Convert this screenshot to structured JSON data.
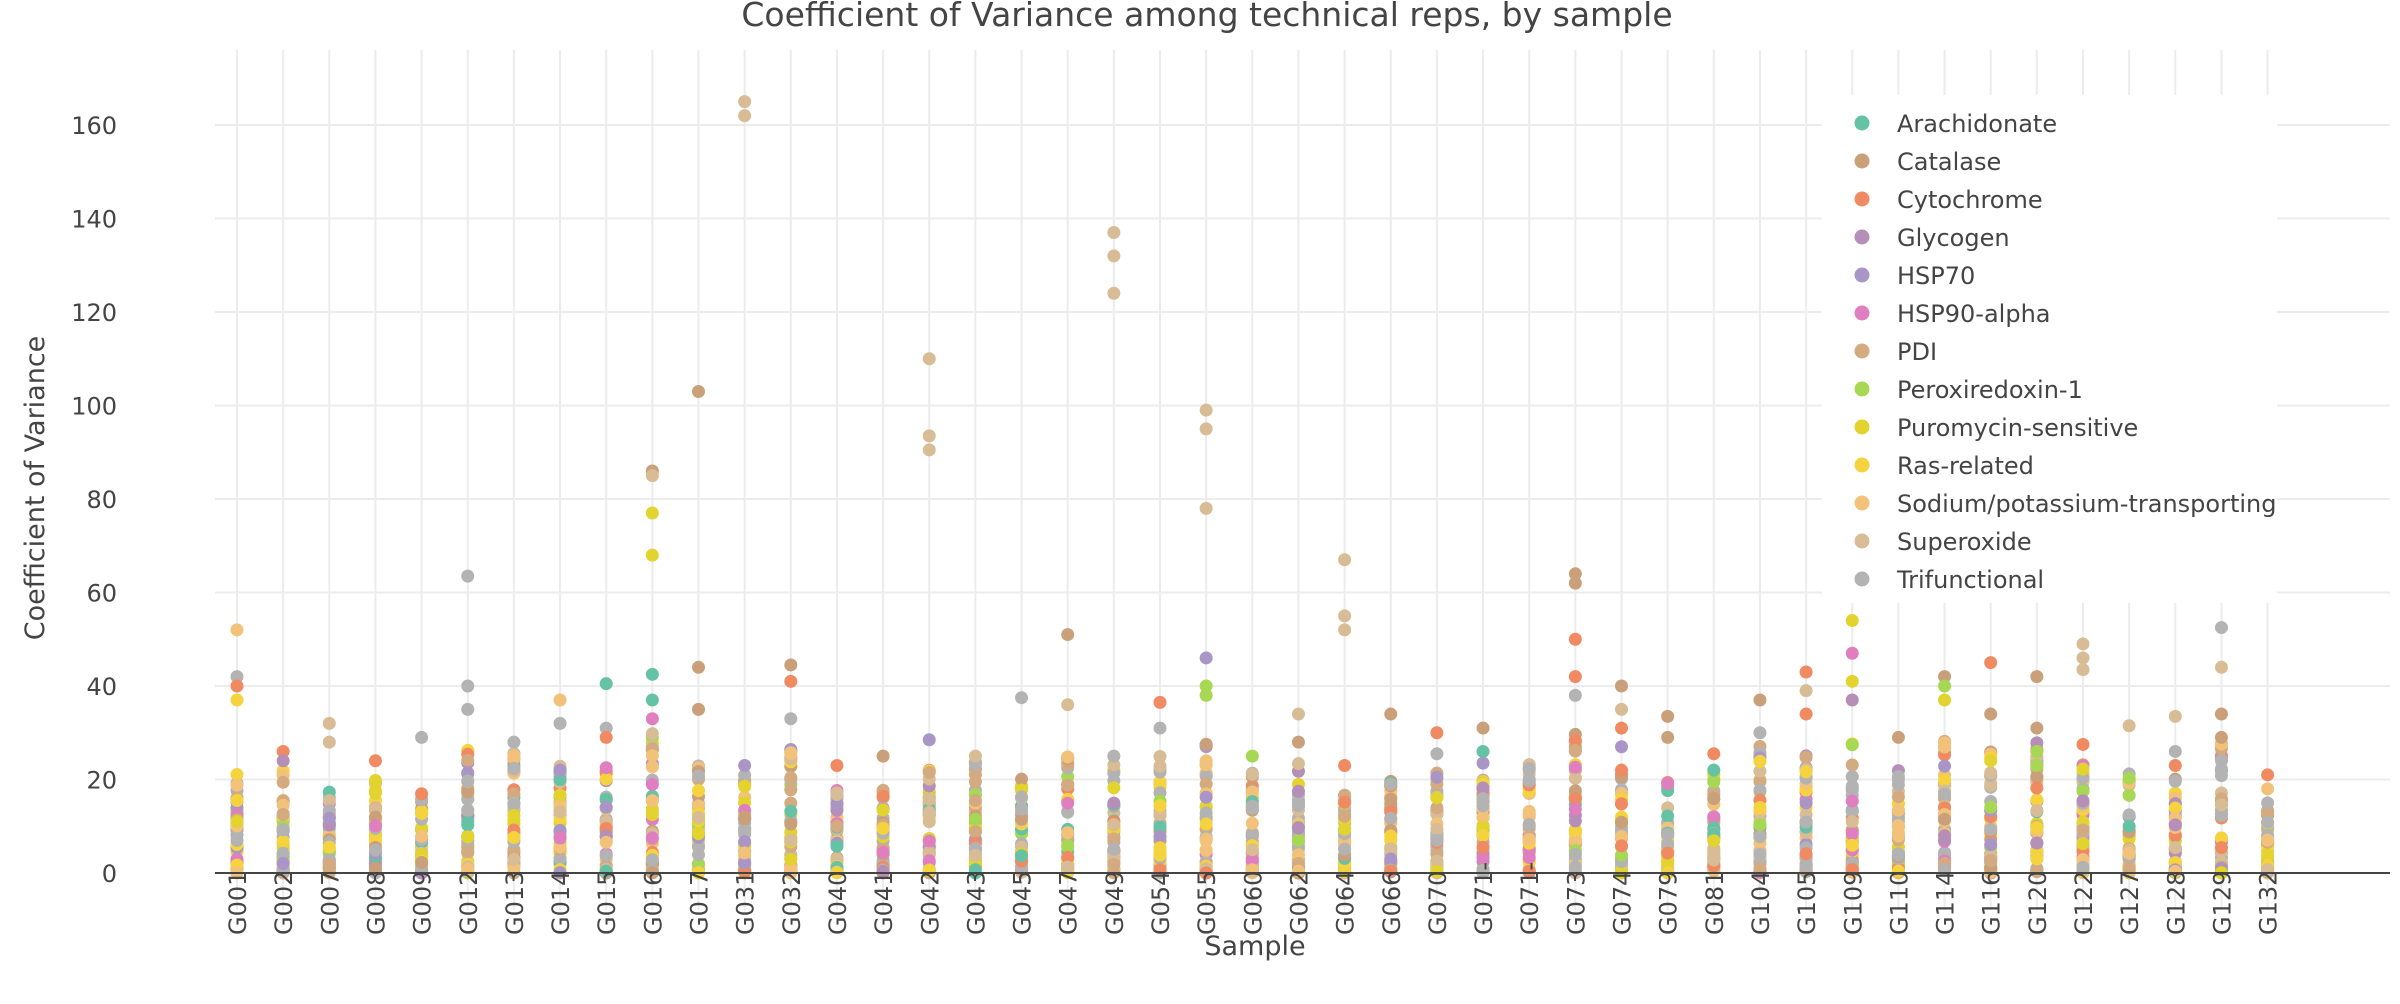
{
  "chart_data": {
    "type": "scatter",
    "title": "Coefficient of Variance among technical reps, by sample",
    "xlabel": "Sample",
    "ylabel": "Coefficient of Variance",
    "ylim": [
      -15,
      175
    ],
    "yticks": [
      0,
      20,
      40,
      60,
      80,
      100,
      120,
      140,
      160
    ],
    "grid": true,
    "legend_position": "top-right",
    "categories": [
      "G001",
      "G002",
      "G007",
      "G008",
      "G009",
      "G012",
      "G013",
      "G014",
      "G015",
      "G016",
      "G017",
      "G031",
      "G032",
      "G040",
      "G041",
      "G042",
      "G043",
      "G045",
      "G047",
      "G049",
      "G054",
      "G055",
      "G060",
      "G062",
      "G064",
      "G066",
      "G070",
      "G071-",
      "G071-",
      "G073",
      "G074",
      "G079",
      "G081",
      "G104",
      "G105",
      "G109",
      "G110",
      "G114",
      "G116",
      "G120",
      "G122",
      "G127",
      "G128",
      "G129",
      "G132"
    ],
    "series": [
      {
        "name": "Arachidonate",
        "color": "#66c2a5"
      },
      {
        "name": "Catalase",
        "color": "#c9a07a"
      },
      {
        "name": "Cytochrome",
        "color": "#ef8a62"
      },
      {
        "name": "Glycogen",
        "color": "#b58fb8"
      },
      {
        "name": "HSP70",
        "color": "#a996c6"
      },
      {
        "name": "HSP90-alpha",
        "color": "#e07fc0"
      },
      {
        "name": "PDI",
        "color": "#d4aa80"
      },
      {
        "name": "Peroxiredoxin-1",
        "color": "#a6d854"
      },
      {
        "name": "Puromycin-sensitive",
        "color": "#e2d32e"
      },
      {
        "name": "Ras-related",
        "color": "#f5d33e"
      },
      {
        "name": "Sodium/potassium-transporting",
        "color": "#f2c27a"
      },
      {
        "name": "Superoxide",
        "color": "#d8bc95"
      },
      {
        "name": "Trifunctional",
        "color": "#b3b3b3"
      }
    ],
    "outliers": [
      {
        "x": "G001",
        "y": 52,
        "series": "Sodium/potassium-transporting"
      },
      {
        "x": "G001",
        "y": 42,
        "series": "Trifunctional"
      },
      {
        "x": "G001",
        "y": 40,
        "series": "Cytochrome"
      },
      {
        "x": "G001",
        "y": 37,
        "series": "Ras-related"
      },
      {
        "x": "G002",
        "y": 26,
        "series": "Cytochrome"
      },
      {
        "x": "G002",
        "y": 24,
        "series": "Glycogen"
      },
      {
        "x": "G007",
        "y": 32,
        "series": "Superoxide"
      },
      {
        "x": "G007",
        "y": 28,
        "series": "Superoxide"
      },
      {
        "x": "G008",
        "y": 24,
        "series": "Cytochrome"
      },
      {
        "x": "G009",
        "y": 29,
        "series": "Trifunctional"
      },
      {
        "x": "G012",
        "y": 63.5,
        "series": "Trifunctional"
      },
      {
        "x": "G012",
        "y": 40,
        "series": "Trifunctional"
      },
      {
        "x": "G012",
        "y": 35,
        "series": "Trifunctional"
      },
      {
        "x": "G013",
        "y": 28,
        "series": "Trifunctional"
      },
      {
        "x": "G014",
        "y": 37,
        "series": "Sodium/potassium-transporting"
      },
      {
        "x": "G014",
        "y": 32,
        "series": "Trifunctional"
      },
      {
        "x": "G014",
        "y": 22,
        "series": "HSP70"
      },
      {
        "x": "G015",
        "y": 40.5,
        "series": "Arachidonate"
      },
      {
        "x": "G015",
        "y": 31,
        "series": "Trifunctional"
      },
      {
        "x": "G015",
        "y": 29,
        "series": "Cytochrome"
      },
      {
        "x": "G016",
        "y": 86,
        "series": "Catalase"
      },
      {
        "x": "G016",
        "y": 85,
        "series": "Superoxide"
      },
      {
        "x": "G016",
        "y": 77,
        "series": "Puromycin-sensitive"
      },
      {
        "x": "G016",
        "y": 68,
        "series": "Puromycin-sensitive"
      },
      {
        "x": "G016",
        "y": 42.5,
        "series": "Arachidonate"
      },
      {
        "x": "G016",
        "y": 37,
        "series": "Arachidonate"
      },
      {
        "x": "G016",
        "y": 33,
        "series": "HSP90-alpha"
      },
      {
        "x": "G017",
        "y": 103,
        "series": "Catalase"
      },
      {
        "x": "G017",
        "y": 44,
        "series": "Catalase"
      },
      {
        "x": "G017",
        "y": 35,
        "series": "Catalase"
      },
      {
        "x": "G031",
        "y": 165,
        "series": "Superoxide"
      },
      {
        "x": "G031",
        "y": 162,
        "series": "Superoxide"
      },
      {
        "x": "G031",
        "y": 23,
        "series": "HSP70"
      },
      {
        "x": "G032",
        "y": 44.5,
        "series": "Catalase"
      },
      {
        "x": "G032",
        "y": 41,
        "series": "Cytochrome"
      },
      {
        "x": "G032",
        "y": 33,
        "series": "Trifunctional"
      },
      {
        "x": "G040",
        "y": 23,
        "series": "Cytochrome"
      },
      {
        "x": "G041",
        "y": 25,
        "series": "Catalase"
      },
      {
        "x": "G042",
        "y": 110,
        "series": "Superoxide"
      },
      {
        "x": "G042",
        "y": 93.5,
        "series": "Superoxide"
      },
      {
        "x": "G042",
        "y": 90.5,
        "series": "Superoxide"
      },
      {
        "x": "G042",
        "y": 28.5,
        "series": "HSP70"
      },
      {
        "x": "G043",
        "y": 25,
        "series": "Superoxide"
      },
      {
        "x": "G045",
        "y": 37.5,
        "series": "Trifunctional"
      },
      {
        "x": "G047",
        "y": 51,
        "series": "Catalase"
      },
      {
        "x": "G047",
        "y": 36,
        "series": "Superoxide"
      },
      {
        "x": "G049",
        "y": 137,
        "series": "Superoxide"
      },
      {
        "x": "G049",
        "y": 132,
        "series": "Superoxide"
      },
      {
        "x": "G049",
        "y": 124,
        "series": "Superoxide"
      },
      {
        "x": "G049",
        "y": 25,
        "series": "Trifunctional"
      },
      {
        "x": "G054",
        "y": 36.5,
        "series": "Cytochrome"
      },
      {
        "x": "G054",
        "y": 31,
        "series": "Trifunctional"
      },
      {
        "x": "G055",
        "y": 99,
        "series": "Superoxide"
      },
      {
        "x": "G055",
        "y": 95,
        "series": "Superoxide"
      },
      {
        "x": "G055",
        "y": 78,
        "series": "Superoxide"
      },
      {
        "x": "G055",
        "y": 46,
        "series": "HSP70"
      },
      {
        "x": "G055",
        "y": 40,
        "series": "Peroxiredoxin-1"
      },
      {
        "x": "G055",
        "y": 38,
        "series": "Peroxiredoxin-1"
      },
      {
        "x": "G060",
        "y": 25,
        "series": "Peroxiredoxin-1"
      },
      {
        "x": "G062",
        "y": 34,
        "series": "Superoxide"
      },
      {
        "x": "G062",
        "y": 28,
        "series": "Catalase"
      },
      {
        "x": "G064",
        "y": 67,
        "series": "Superoxide"
      },
      {
        "x": "G064",
        "y": 55,
        "series": "Superoxide"
      },
      {
        "x": "G064",
        "y": 52,
        "series": "Superoxide"
      },
      {
        "x": "G064",
        "y": 23,
        "series": "Cytochrome"
      },
      {
        "x": "G066",
        "y": 34,
        "series": "Catalase"
      },
      {
        "x": "G070",
        "y": 30,
        "series": "Cytochrome"
      },
      {
        "x": "G070",
        "y": 25.5,
        "series": "Trifunctional"
      },
      {
        "x": "G071-",
        "y": 23.5,
        "series": "HSP70"
      },
      {
        "x": "G071-",
        "y": 31,
        "series": "Catalase"
      },
      {
        "x": "G071-",
        "y": 26,
        "series": "Arachidonate"
      },
      {
        "x": "G073",
        "y": 64,
        "series": "Catalase"
      },
      {
        "x": "G073",
        "y": 62,
        "series": "Catalase"
      },
      {
        "x": "G073",
        "y": 50,
        "series": "Cytochrome"
      },
      {
        "x": "G073",
        "y": 42,
        "series": "Cytochrome"
      },
      {
        "x": "G073",
        "y": 38,
        "series": "Trifunctional"
      },
      {
        "x": "G074",
        "y": 40,
        "series": "Catalase"
      },
      {
        "x": "G074",
        "y": 35,
        "series": "Superoxide"
      },
      {
        "x": "G074",
        "y": 31,
        "series": "Cytochrome"
      },
      {
        "x": "G074",
        "y": 27,
        "series": "HSP70"
      },
      {
        "x": "G079",
        "y": 33.5,
        "series": "Catalase"
      },
      {
        "x": "G079",
        "y": 29,
        "series": "Catalase"
      },
      {
        "x": "G081",
        "y": 25.5,
        "series": "Cytochrome"
      },
      {
        "x": "G081",
        "y": 22,
        "series": "Arachidonate"
      },
      {
        "x": "G104",
        "y": 37,
        "series": "Catalase"
      },
      {
        "x": "G104",
        "y": 30,
        "series": "Trifunctional"
      },
      {
        "x": "G105",
        "y": 43,
        "series": "Cytochrome"
      },
      {
        "x": "G105",
        "y": 39,
        "series": "Superoxide"
      },
      {
        "x": "G105",
        "y": 34,
        "series": "Cytochrome"
      },
      {
        "x": "G109",
        "y": 54,
        "series": "Puromycin-sensitive"
      },
      {
        "x": "G109",
        "y": 47,
        "series": "HSP90-alpha"
      },
      {
        "x": "G109",
        "y": 41,
        "series": "Puromycin-sensitive"
      },
      {
        "x": "G109",
        "y": 37,
        "series": "Glycogen"
      },
      {
        "x": "G110",
        "y": 29,
        "series": "Catalase"
      },
      {
        "x": "G114",
        "y": 42,
        "series": "Catalase"
      },
      {
        "x": "G114",
        "y": 40,
        "series": "Peroxiredoxin-1"
      },
      {
        "x": "G114",
        "y": 37,
        "series": "Puromycin-sensitive"
      },
      {
        "x": "G116",
        "y": 45,
        "series": "Cytochrome"
      },
      {
        "x": "G116",
        "y": 34,
        "series": "Catalase"
      },
      {
        "x": "G116",
        "y": 24,
        "series": "Puromycin-sensitive"
      },
      {
        "x": "G120",
        "y": 42,
        "series": "Catalase"
      },
      {
        "x": "G120",
        "y": 31,
        "series": "Catalase"
      },
      {
        "x": "G120",
        "y": 26,
        "series": "Peroxiredoxin-1"
      },
      {
        "x": "G120",
        "y": 23,
        "series": "Peroxiredoxin-1"
      },
      {
        "x": "G122",
        "y": 49,
        "series": "Superoxide"
      },
      {
        "x": "G122",
        "y": 46,
        "series": "Superoxide"
      },
      {
        "x": "G122",
        "y": 43.5,
        "series": "Superoxide"
      },
      {
        "x": "G122",
        "y": 27.5,
        "series": "Cytochrome"
      },
      {
        "x": "G127",
        "y": 31.5,
        "series": "Superoxide"
      },
      {
        "x": "G128",
        "y": 33.5,
        "series": "Superoxide"
      },
      {
        "x": "G128",
        "y": 26,
        "series": "Trifunctional"
      },
      {
        "x": "G129",
        "y": 52.5,
        "series": "Trifunctional"
      },
      {
        "x": "G129",
        "y": 44,
        "series": "Superoxide"
      },
      {
        "x": "G129",
        "y": 34,
        "series": "Catalase"
      },
      {
        "x": "G129",
        "y": 29,
        "series": "Catalase"
      },
      {
        "x": "G132",
        "y": 21,
        "series": "Cytochrome"
      },
      {
        "x": "G132",
        "y": 18,
        "series": "Sodium/potassium-transporting"
      },
      {
        "x": "G132",
        "y": 15,
        "series": "Trifunctional"
      }
    ],
    "dense_ranges": [
      22,
      22,
      18,
      20,
      18,
      28,
      26,
      24,
      26,
      30,
      24,
      22,
      28,
      20,
      18,
      22,
      24,
      22,
      26,
      24,
      26,
      28,
      22,
      24,
      18,
      20,
      22,
      20,
      24,
      30,
      22,
      20,
      22,
      28,
      26,
      30,
      22,
      30,
      26,
      28,
      24,
      22,
      24,
      28,
      14
    ]
  }
}
